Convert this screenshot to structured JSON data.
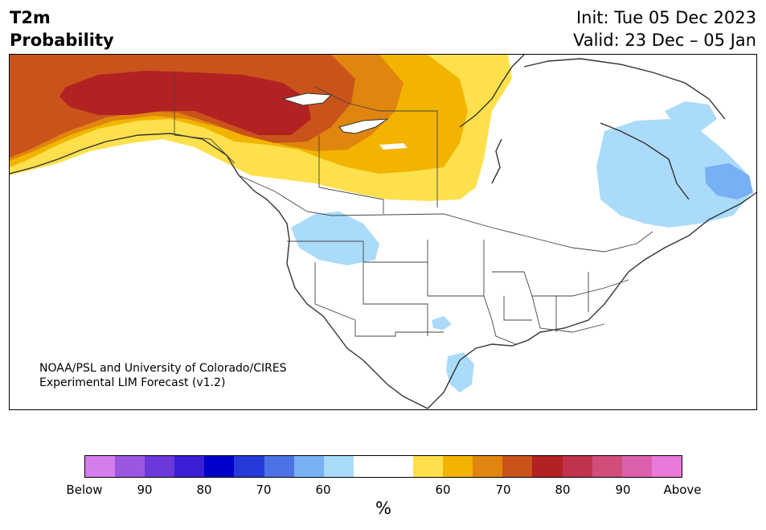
{
  "header": {
    "variable": "T2m",
    "product": "Probability",
    "init": "Init: Tue 05 Dec 2023",
    "valid": "Valid: 23 Dec – 05 Jan"
  },
  "credit": {
    "line1": "NOAA/PSL and University of Colorado/CIRES",
    "line2": "Experimental LIM Forecast (v1.2)"
  },
  "colorbar": {
    "colors": [
      "#d67ded",
      "#9b57e2",
      "#6b38d9",
      "#3a1fd6",
      "#0000cc",
      "#2639d9",
      "#4d72e6",
      "#78b0f4",
      "#abdbfb",
      "#ffffff",
      "#ffffff",
      "#fde04c",
      "#f2b400",
      "#e0850e",
      "#c9531a",
      "#b22222",
      "#c0334d",
      "#cf4f7a",
      "#dc60ac",
      "#e97ad9"
    ],
    "ticks": [
      {
        "label": "Below"
      },
      {
        "label": "90"
      },
      {
        "label": "80"
      },
      {
        "label": "70"
      },
      {
        "label": "60"
      },
      {
        "label": "60"
      },
      {
        "label": "70"
      },
      {
        "label": "80"
      },
      {
        "label": "90"
      },
      {
        "label": "Above"
      }
    ],
    "unit": "%"
  },
  "map_regions": [
    {
      "name": "alaska-above-80",
      "category": "above 80",
      "color": "#b22222"
    },
    {
      "name": "alaska-above-70",
      "category": "above 70",
      "color": "#c9531a"
    },
    {
      "name": "canada-above-60",
      "category": "above 60",
      "color": "#f2b400"
    },
    {
      "name": "canada-above-50",
      "category": "above 50",
      "color": "#fde04c"
    },
    {
      "name": "quebec-below-60",
      "category": "below 60",
      "color": "#abdbfb"
    },
    {
      "name": "labrador-below-70",
      "category": "below 70",
      "color": "#78b0f4"
    },
    {
      "name": "northwest-us-below-60",
      "category": "below 60",
      "color": "#abdbfb"
    },
    {
      "name": "texas-below-60",
      "category": "below 60",
      "color": "#abdbfb"
    }
  ]
}
